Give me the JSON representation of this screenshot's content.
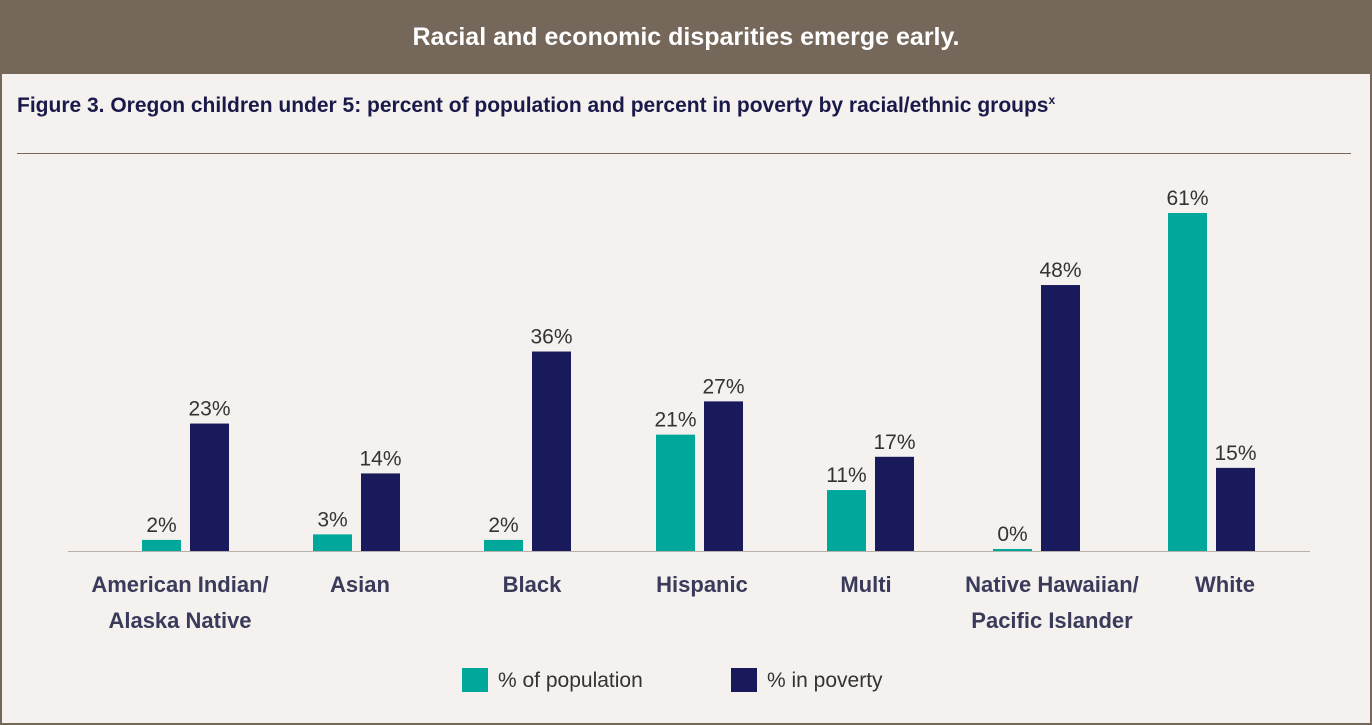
{
  "banner": {
    "text": "Racial and economic disparities emerge early."
  },
  "figure": {
    "title": "Figure 3. Oregon children under 5: percent of population and percent in poverty by racial/ethnic groups",
    "footnote_marker": "x"
  },
  "colors": {
    "banner": "#75685a",
    "population": "#00a89c",
    "poverty": "#191a5c",
    "panel": "#f4f1ee"
  },
  "chart_data": {
    "type": "bar",
    "categories": [
      [
        "American Indian/",
        "Alaska Native"
      ],
      [
        "Asian"
      ],
      [
        "Black"
      ],
      [
        "Hispanic"
      ],
      [
        "Multi"
      ],
      [
        "Native Hawaiian/",
        "Pacific Islander"
      ],
      [
        "White"
      ]
    ],
    "series": [
      {
        "name": "% of population",
        "color": "#00a89c",
        "values": [
          2,
          3,
          2,
          21,
          11,
          0,
          61
        ],
        "labels": [
          "2%",
          "3%",
          "2%",
          "21%",
          "11%",
          "0%",
          "61%"
        ]
      },
      {
        "name": "% in poverty",
        "color": "#191a5c",
        "values": [
          23,
          14,
          36,
          27,
          17,
          48,
          15
        ],
        "labels": [
          "23%",
          "14%",
          "36%",
          "27%",
          "17%",
          "48%",
          "15%"
        ]
      }
    ],
    "ylim": [
      0,
      61
    ],
    "grid": false,
    "legend_position": "bottom-center"
  }
}
